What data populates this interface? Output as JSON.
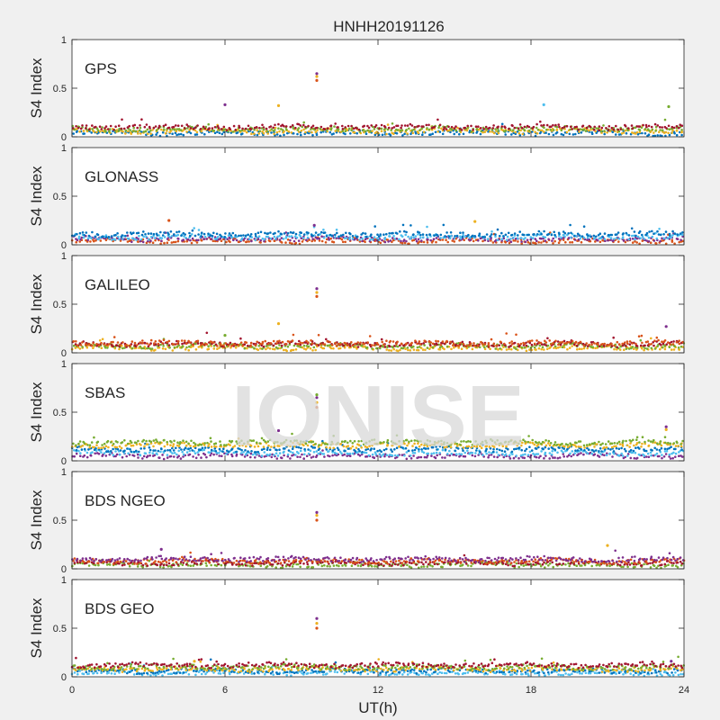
{
  "figure": {
    "title": "HNHH20191126",
    "xlabel": "UT(h)",
    "ylabel": "S4 Index",
    "watermark": "IONISE",
    "series_colors": [
      "#0072BD",
      "#D95319",
      "#EDB120",
      "#7E2F8E",
      "#77AC30",
      "#4DBEEE",
      "#A2142F"
    ]
  },
  "chart_data": [
    {
      "type": "scatter",
      "name": "GPS",
      "title": "HNHH20191126",
      "ylabel": "S4 Index",
      "xlabel": "",
      "xlim": [
        0,
        24
      ],
      "ylim": [
        0,
        1
      ],
      "xticks": [
        "0",
        "6",
        "12",
        "18",
        "24"
      ],
      "yticks": [
        "0",
        "0.5",
        "1"
      ],
      "baseline_levels": [
        0.04,
        0.06,
        0.08,
        0.1
      ],
      "spikes": [
        {
          "x": 9.6,
          "y": [
            0.58,
            0.62,
            0.65
          ]
        },
        {
          "x": 8.1,
          "y": [
            0.32
          ]
        },
        {
          "x": 6.0,
          "y": [
            0.33
          ]
        },
        {
          "x": 23.4,
          "y": [
            0.31
          ]
        },
        {
          "x": 18.5,
          "y": [
            0.33
          ]
        }
      ]
    },
    {
      "type": "scatter",
      "name": "GLONASS",
      "ylabel": "S4 Index",
      "xlabel": "",
      "xlim": [
        0,
        24
      ],
      "ylim": [
        0,
        1
      ],
      "xticks": [
        "0",
        "6",
        "12",
        "18",
        "24"
      ],
      "yticks": [
        "0",
        "0.5",
        "1"
      ],
      "baseline_levels": [
        0.04,
        0.06,
        0.08,
        0.11
      ],
      "spikes": [
        {
          "x": 3.8,
          "y": [
            0.25
          ]
        },
        {
          "x": 15.8,
          "y": [
            0.24
          ]
        },
        {
          "x": 9.5,
          "y": [
            0.2
          ]
        }
      ]
    },
    {
      "type": "scatter",
      "name": "GALILEO",
      "ylabel": "S4 Index",
      "xlabel": "",
      "xlim": [
        0,
        24
      ],
      "ylim": [
        0,
        1
      ],
      "xticks": [
        "0",
        "6",
        "12",
        "18",
        "24"
      ],
      "yticks": [
        "0",
        "0.5",
        "1"
      ],
      "baseline_levels": [
        0.05,
        0.07,
        0.09,
        0.1
      ],
      "spikes": [
        {
          "x": 9.6,
          "y": [
            0.58,
            0.62,
            0.66
          ]
        },
        {
          "x": 8.1,
          "y": [
            0.3
          ]
        },
        {
          "x": 23.3,
          "y": [
            0.27
          ]
        },
        {
          "x": 6.0,
          "y": [
            0.18
          ]
        }
      ]
    },
    {
      "type": "scatter",
      "name": "SBAS",
      "ylabel": "S4 Index",
      "xlabel": "",
      "xlim": [
        0,
        24
      ],
      "ylim": [
        0,
        1
      ],
      "xticks": [
        "0",
        "6",
        "12",
        "18",
        "24"
      ],
      "yticks": [
        "0",
        "0.5",
        "1"
      ],
      "baseline_levels": [
        0.05,
        0.08,
        0.12,
        0.16,
        0.19
      ],
      "spikes": [
        {
          "x": 9.6,
          "y": [
            0.55,
            0.6,
            0.65,
            0.68
          ]
        },
        {
          "x": 23.3,
          "y": [
            0.32,
            0.35
          ]
        },
        {
          "x": 8.1,
          "y": [
            0.31
          ]
        }
      ]
    },
    {
      "type": "scatter",
      "name": "BDS NGEO",
      "ylabel": "S4 Index",
      "xlabel": "",
      "xlim": [
        0,
        24
      ],
      "ylim": [
        0,
        1
      ],
      "xticks": [
        "0",
        "6",
        "12",
        "18",
        "24"
      ],
      "yticks": [
        "0",
        "0.5",
        "1"
      ],
      "baseline_levels": [
        0.04,
        0.06,
        0.08,
        0.1
      ],
      "spikes": [
        {
          "x": 9.6,
          "y": [
            0.5,
            0.55,
            0.58
          ]
        },
        {
          "x": 21.0,
          "y": [
            0.24
          ]
        },
        {
          "x": 3.5,
          "y": [
            0.2
          ]
        }
      ]
    },
    {
      "type": "scatter",
      "name": "BDS GEO",
      "ylabel": "S4 Index",
      "xlabel": "UT(h)",
      "xlim": [
        0,
        24
      ],
      "ylim": [
        0,
        1
      ],
      "xticks": [
        "0",
        "6",
        "12",
        "18",
        "24"
      ],
      "yticks": [
        "0",
        "0.5",
        "1"
      ],
      "baseline_levels": [
        0.04,
        0.06,
        0.08,
        0.1,
        0.12
      ],
      "spikes": [
        {
          "x": 9.6,
          "y": [
            0.5,
            0.55,
            0.6
          ]
        },
        {
          "x": 4.8,
          "y": [
            0.16
          ]
        },
        {
          "x": 23.5,
          "y": [
            0.16
          ]
        }
      ]
    }
  ]
}
